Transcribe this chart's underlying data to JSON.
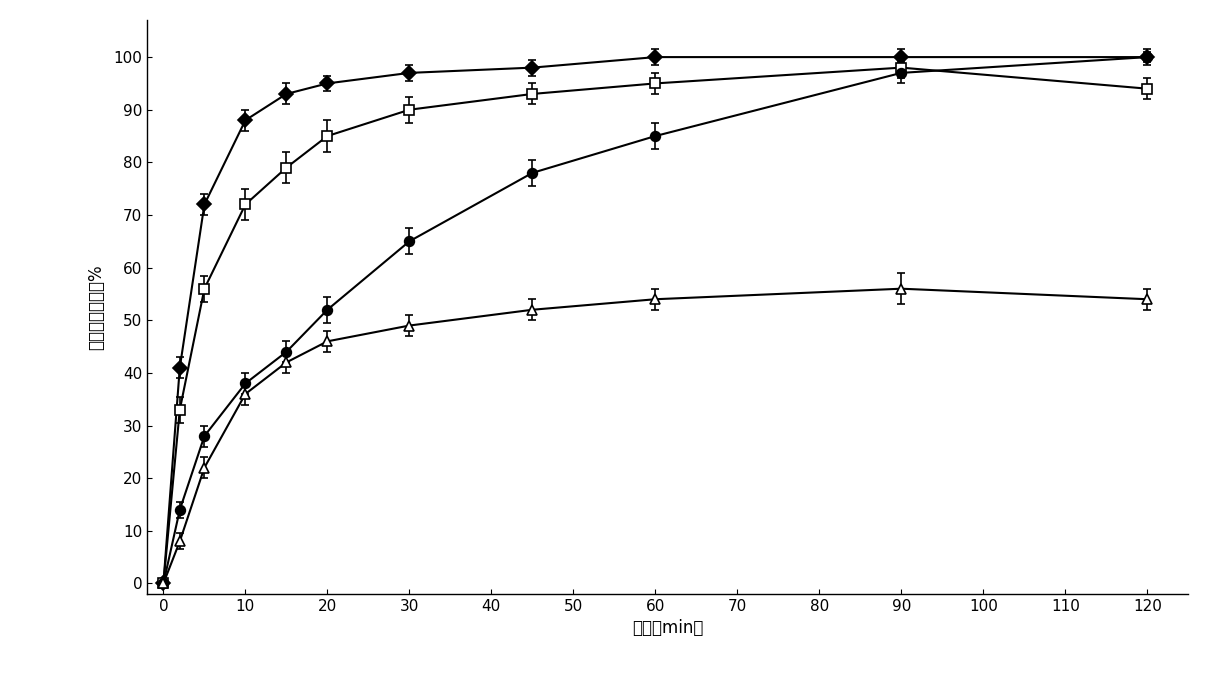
{
  "title": "",
  "xlabel": "时间（min）",
  "ylabel": "累积滚出百分率%",
  "xlim": [
    -2,
    125
  ],
  "ylim": [
    -2,
    107
  ],
  "xticks": [
    0,
    10,
    20,
    30,
    40,
    50,
    60,
    70,
    80,
    90,
    100,
    110,
    120
  ],
  "yticks": [
    0,
    10,
    20,
    30,
    40,
    50,
    60,
    70,
    80,
    90,
    100
  ],
  "series": [
    {
      "name": "series1_diamond_filled",
      "marker": "D",
      "markerfacecolor": "black",
      "markeredgecolor": "black",
      "x": [
        0,
        2,
        5,
        10,
        15,
        20,
        30,
        45,
        60,
        90,
        120
      ],
      "y": [
        0,
        41,
        72,
        88,
        93,
        95,
        97,
        98,
        100,
        100,
        100
      ],
      "yerr": [
        0,
        2.0,
        2.0,
        2.0,
        2.0,
        1.5,
        1.5,
        1.5,
        1.5,
        1.5,
        1.0
      ]
    },
    {
      "name": "series2_square_open",
      "marker": "s",
      "markerfacecolor": "white",
      "markeredgecolor": "black",
      "x": [
        0,
        2,
        5,
        10,
        15,
        20,
        30,
        45,
        60,
        90,
        120
      ],
      "y": [
        0,
        33,
        56,
        72,
        79,
        85,
        90,
        93,
        95,
        98,
        94
      ],
      "yerr": [
        0,
        2.5,
        2.5,
        3.0,
        3.0,
        3.0,
        2.5,
        2.0,
        2.0,
        2.0,
        2.0
      ]
    },
    {
      "name": "series3_circle_filled",
      "marker": "o",
      "markerfacecolor": "black",
      "markeredgecolor": "black",
      "x": [
        0,
        2,
        5,
        10,
        15,
        20,
        30,
        45,
        60,
        90,
        120
      ],
      "y": [
        0,
        14,
        28,
        38,
        44,
        52,
        65,
        78,
        85,
        97,
        100
      ],
      "yerr": [
        0,
        1.5,
        2.0,
        2.0,
        2.0,
        2.5,
        2.5,
        2.5,
        2.5,
        2.0,
        1.5
      ]
    },
    {
      "name": "series4_triangle_open",
      "marker": "^",
      "markerfacecolor": "white",
      "markeredgecolor": "black",
      "x": [
        0,
        2,
        5,
        10,
        15,
        20,
        30,
        45,
        60,
        90,
        120
      ],
      "y": [
        0,
        8,
        22,
        36,
        42,
        46,
        49,
        52,
        54,
        56,
        54
      ],
      "yerr": [
        0,
        1.5,
        2.0,
        2.0,
        2.0,
        2.0,
        2.0,
        2.0,
        2.0,
        3.0,
        2.0
      ]
    }
  ],
  "line_color": "#000000",
  "bg_color": "#ffffff",
  "marker_size": 7,
  "linewidth": 1.5,
  "capsize": 3,
  "elinewidth": 1.2,
  "xlabel_fontsize": 12,
  "ylabel_fontsize": 12,
  "tick_fontsize": 11
}
